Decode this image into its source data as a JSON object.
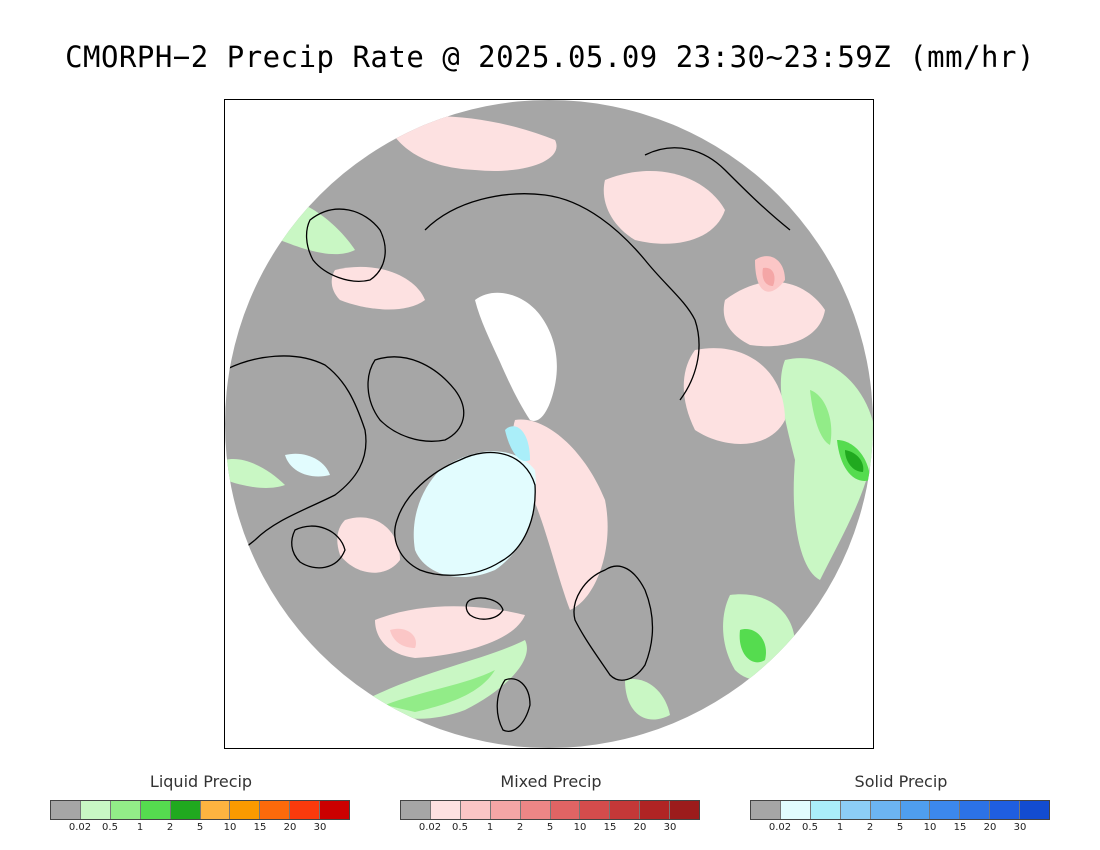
{
  "title": "CMORPH−2 Precip Rate @ 2025.05.09 23:30~23:59Z (mm/hr)",
  "legends": [
    {
      "title": "Liquid Precip",
      "colors": [
        "#a6a6a6",
        "#c9f7c4",
        "#92ec88",
        "#55dc4f",
        "#20a91f",
        "#fdb340",
        "#fb9a00",
        "#fc6a0b",
        "#fb3a0c",
        "#cc0000"
      ],
      "ticks": [
        "0.02",
        "0.5",
        "1",
        "2",
        "5",
        "10",
        "15",
        "20",
        "30"
      ]
    },
    {
      "title": "Mixed Precip",
      "colors": [
        "#a6a6a6",
        "#fde1e1",
        "#fbc6c6",
        "#f4a6a6",
        "#ec8686",
        "#e06464",
        "#d44c4c",
        "#c43838",
        "#b02424",
        "#9c1c1c"
      ],
      "ticks": [
        "0.02",
        "0.5",
        "1",
        "2",
        "5",
        "10",
        "15",
        "20",
        "30"
      ]
    },
    {
      "title": "Solid Precip",
      "colors": [
        "#a6a6a6",
        "#e2fcfe",
        "#aaeef9",
        "#8ccdf6",
        "#6cb4f2",
        "#4f9eef",
        "#3c88ec",
        "#2c72e6",
        "#1f5ee0",
        "#134cd0"
      ],
      "ticks": [
        "0.02",
        "0.5",
        "1",
        "2",
        "5",
        "10",
        "15",
        "20",
        "30"
      ]
    }
  ]
}
